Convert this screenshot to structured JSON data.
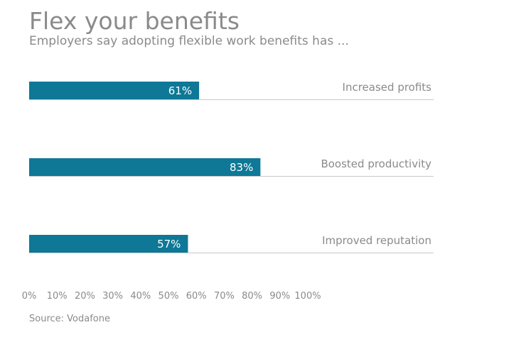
{
  "chart_data": {
    "type": "bar",
    "orientation": "horizontal",
    "title": "Flex your benefits",
    "subtitle": "Employers say adopting flexible work benefits has ...",
    "categories": [
      "Increased profits",
      "Boosted productivity",
      "Improved reputation"
    ],
    "values": [
      61,
      83,
      57
    ],
    "value_labels": [
      "61%",
      "83%",
      "57%"
    ],
    "x_ticks": [
      "0%",
      "10%",
      "20%",
      "30%",
      "40%",
      "50%",
      "60%",
      "70%",
      "80%",
      "90%",
      "100%"
    ],
    "xlim": [
      0,
      100
    ],
    "grid": false,
    "source": "Source: Vodafone",
    "colors": {
      "bar": "#0e7896",
      "text": "#8a8a8a",
      "value_text": "#ffffff",
      "baseline": "#c8c8c8"
    }
  }
}
